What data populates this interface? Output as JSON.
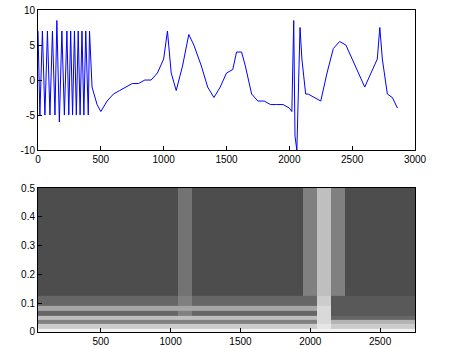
{
  "chart_data": [
    {
      "type": "line",
      "color": "#0000ff",
      "x": [
        0,
        15,
        35,
        55,
        75,
        95,
        115,
        135,
        150,
        170,
        190,
        210,
        230,
        245,
        260,
        275,
        290,
        305,
        320,
        335,
        350,
        365,
        380,
        400,
        410,
        430,
        470,
        500,
        550,
        600,
        650,
        700,
        750,
        800,
        850,
        900,
        950,
        1000,
        1030,
        1060,
        1100,
        1150,
        1200,
        1240,
        1300,
        1350,
        1400,
        1450,
        1500,
        1550,
        1580,
        1620,
        1650,
        1700,
        1750,
        1800,
        1850,
        1900,
        1950,
        2000,
        2020,
        2035,
        2045,
        2060,
        2070,
        2085,
        2100,
        2130,
        2150,
        2200,
        2250,
        2300,
        2350,
        2400,
        2450,
        2500,
        2550,
        2600,
        2650,
        2700,
        2720,
        2740,
        2780,
        2820,
        2860
      ],
      "values": [
        7,
        -5,
        7,
        -5,
        7,
        -5,
        7,
        -5,
        8.5,
        -6,
        7,
        -5,
        7,
        -5,
        7,
        -5,
        7,
        -5,
        7,
        -5,
        7,
        -5,
        7,
        -5,
        7,
        -1,
        -3.5,
        -4.5,
        -3,
        -2,
        -1.5,
        -1,
        -0.5,
        -0.5,
        0,
        0,
        1,
        3,
        7,
        1,
        -1.5,
        2,
        6.5,
        5,
        2,
        -1,
        -2.5,
        -1,
        1,
        1.5,
        4,
        4,
        2,
        -2,
        -3,
        -3,
        -3.5,
        -3.5,
        -3.5,
        -4,
        -4.5,
        8.5,
        -8,
        -10,
        -3,
        7.5,
        3,
        -2,
        -2,
        -2.5,
        -3,
        1,
        4.5,
        5.5,
        5,
        3,
        1,
        -1,
        1,
        3,
        7.5,
        3,
        -2,
        -2.5,
        -4
      ],
      "xlim": [
        0,
        3000
      ],
      "xticks": [
        0,
        500,
        1000,
        1500,
        2000,
        2500,
        3000
      ],
      "ylim": [
        -10,
        10
      ],
      "yticks": [
        -10,
        -5,
        0,
        5,
        10
      ]
    },
    {
      "type": "heatmap",
      "color": "gray",
      "x": [
        100,
        200,
        300,
        400,
        500,
        600,
        700,
        800,
        900,
        1000,
        1100,
        1200,
        1300,
        1400,
        1500,
        1600,
        1700,
        1800,
        1900,
        2000,
        2100,
        2200,
        2300,
        2400,
        2500,
        2600,
        2700
      ],
      "y": [
        0.005,
        0.02,
        0.035,
        0.05,
        0.065,
        0.08,
        0.1,
        0.15,
        0.2,
        0.25,
        0.3,
        0.35,
        0.4,
        0.45,
        0.5
      ],
      "z": [
        [
          0.95,
          0.95,
          0.95,
          0.95,
          0.95,
          0.95,
          0.95,
          0.95,
          0.95,
          0.95,
          0.95,
          0.95,
          0.95,
          0.95,
          0.95,
          0.95,
          0.95,
          0.95,
          0.95,
          0.95,
          0.95,
          0.95,
          0.95,
          0.95,
          0.95,
          0.95,
          0.95
        ],
        [
          0.8,
          0.8,
          0.8,
          0.8,
          0.8,
          0.8,
          0.8,
          0.8,
          0.8,
          0.8,
          0.8,
          0.8,
          0.8,
          0.8,
          0.8,
          0.8,
          0.8,
          0.8,
          0.8,
          0.8,
          0.9,
          0.8,
          0.8,
          0.8,
          0.8,
          0.8,
          0.8
        ],
        [
          0.5,
          0.5,
          0.5,
          0.5,
          0.5,
          0.5,
          0.5,
          0.5,
          0.5,
          0.5,
          0.5,
          0.5,
          0.5,
          0.5,
          0.5,
          0.5,
          0.5,
          0.5,
          0.5,
          0.5,
          0.85,
          0.7,
          0.7,
          0.7,
          0.7,
          0.7,
          0.7
        ],
        [
          0.75,
          0.75,
          0.75,
          0.75,
          0.75,
          0.75,
          0.75,
          0.75,
          0.75,
          0.75,
          0.75,
          0.75,
          0.75,
          0.75,
          0.75,
          0.75,
          0.75,
          0.75,
          0.75,
          0.75,
          0.85,
          0.4,
          0.4,
          0.4,
          0.4,
          0.4,
          0.4
        ],
        [
          0.4,
          0.4,
          0.4,
          0.4,
          0.4,
          0.4,
          0.4,
          0.4,
          0.4,
          0.4,
          0.5,
          0.4,
          0.4,
          0.4,
          0.4,
          0.4,
          0.4,
          0.4,
          0.4,
          0.4,
          0.85,
          0.35,
          0.35,
          0.35,
          0.35,
          0.35,
          0.35
        ],
        [
          0.65,
          0.65,
          0.65,
          0.65,
          0.65,
          0.65,
          0.65,
          0.65,
          0.65,
          0.65,
          0.65,
          0.65,
          0.65,
          0.65,
          0.65,
          0.65,
          0.65,
          0.65,
          0.65,
          0.65,
          0.85,
          0.35,
          0.35,
          0.35,
          0.35,
          0.35,
          0.35
        ],
        [
          0.4,
          0.4,
          0.4,
          0.4,
          0.4,
          0.4,
          0.4,
          0.4,
          0.4,
          0.4,
          0.5,
          0.4,
          0.4,
          0.4,
          0.4,
          0.4,
          0.4,
          0.4,
          0.4,
          0.4,
          0.8,
          0.35,
          0.35,
          0.35,
          0.35,
          0.35,
          0.35
        ],
        [
          0.3,
          0.3,
          0.3,
          0.3,
          0.3,
          0.3,
          0.3,
          0.3,
          0.3,
          0.3,
          0.45,
          0.3,
          0.3,
          0.3,
          0.3,
          0.3,
          0.3,
          0.3,
          0.3,
          0.5,
          0.75,
          0.5,
          0.3,
          0.3,
          0.3,
          0.3,
          0.3
        ],
        [
          0.3,
          0.3,
          0.3,
          0.3,
          0.3,
          0.3,
          0.3,
          0.3,
          0.3,
          0.3,
          0.45,
          0.3,
          0.3,
          0.3,
          0.3,
          0.3,
          0.3,
          0.3,
          0.3,
          0.5,
          0.75,
          0.5,
          0.3,
          0.3,
          0.3,
          0.3,
          0.3
        ],
        [
          0.3,
          0.3,
          0.3,
          0.3,
          0.3,
          0.3,
          0.3,
          0.3,
          0.3,
          0.3,
          0.45,
          0.3,
          0.3,
          0.3,
          0.3,
          0.3,
          0.3,
          0.3,
          0.3,
          0.5,
          0.75,
          0.5,
          0.3,
          0.3,
          0.3,
          0.3,
          0.3
        ],
        [
          0.3,
          0.3,
          0.3,
          0.3,
          0.3,
          0.3,
          0.3,
          0.3,
          0.3,
          0.3,
          0.45,
          0.3,
          0.3,
          0.3,
          0.3,
          0.3,
          0.3,
          0.3,
          0.3,
          0.5,
          0.75,
          0.5,
          0.3,
          0.3,
          0.3,
          0.3,
          0.3
        ],
        [
          0.3,
          0.3,
          0.3,
          0.3,
          0.3,
          0.3,
          0.3,
          0.3,
          0.3,
          0.3,
          0.45,
          0.3,
          0.3,
          0.3,
          0.3,
          0.3,
          0.3,
          0.3,
          0.3,
          0.5,
          0.75,
          0.5,
          0.3,
          0.3,
          0.3,
          0.3,
          0.3
        ],
        [
          0.3,
          0.3,
          0.3,
          0.3,
          0.3,
          0.3,
          0.3,
          0.3,
          0.3,
          0.3,
          0.45,
          0.3,
          0.3,
          0.3,
          0.3,
          0.3,
          0.3,
          0.3,
          0.3,
          0.5,
          0.75,
          0.5,
          0.3,
          0.3,
          0.3,
          0.3,
          0.3
        ],
        [
          0.3,
          0.3,
          0.3,
          0.3,
          0.3,
          0.3,
          0.3,
          0.3,
          0.3,
          0.3,
          0.45,
          0.3,
          0.3,
          0.3,
          0.3,
          0.3,
          0.3,
          0.3,
          0.3,
          0.5,
          0.75,
          0.5,
          0.3,
          0.3,
          0.3,
          0.3,
          0.3
        ],
        [
          0.3,
          0.3,
          0.3,
          0.3,
          0.3,
          0.3,
          0.3,
          0.3,
          0.3,
          0.3,
          0.45,
          0.3,
          0.3,
          0.3,
          0.3,
          0.3,
          0.3,
          0.3,
          0.3,
          0.5,
          0.75,
          0.5,
          0.3,
          0.3,
          0.3,
          0.3,
          0.3
        ]
      ],
      "zlim": [
        0,
        1
      ],
      "xlim": [
        50,
        2750
      ],
      "xticks": [
        500,
        1000,
        1500,
        2000,
        2500
      ],
      "ylim": [
        0,
        0.5
      ],
      "yticks": [
        0,
        0.1,
        0.2,
        0.3,
        0.4,
        0.5
      ]
    }
  ]
}
